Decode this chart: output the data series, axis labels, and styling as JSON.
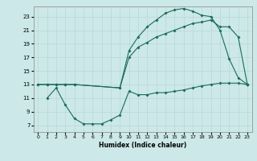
{
  "title": "",
  "xlabel": "Humidex (Indice chaleur)",
  "bg_color": "#cce8e8",
  "grid_color": "#b8d8d8",
  "line_color": "#1a6b5a",
  "xlim": [
    -0.5,
    23.5
  ],
  "ylim": [
    6,
    24.5
  ],
  "xticks": [
    0,
    1,
    2,
    3,
    4,
    5,
    6,
    7,
    8,
    9,
    10,
    11,
    12,
    13,
    14,
    15,
    16,
    17,
    18,
    19,
    20,
    21,
    22,
    23
  ],
  "yticks": [
    7,
    9,
    11,
    13,
    15,
    17,
    19,
    21,
    23
  ],
  "line1_x": [
    0,
    1,
    2,
    3,
    4,
    9,
    10,
    11,
    12,
    13,
    14,
    15,
    16,
    17,
    18,
    19,
    20,
    21,
    22,
    23
  ],
  "line1_y": [
    13,
    13,
    13,
    13,
    13,
    12.5,
    18,
    20,
    21.5,
    22.5,
    23.5,
    24,
    24.2,
    23.8,
    23.2,
    23.0,
    21.0,
    16.8,
    14.0,
    13
  ],
  "line2_x": [
    0,
    1,
    2,
    3,
    4,
    9,
    10,
    11,
    12,
    13,
    14,
    15,
    16,
    17,
    18,
    19,
    20,
    21,
    22,
    23
  ],
  "line2_y": [
    13,
    13,
    13,
    13,
    13,
    12.5,
    17,
    18.5,
    19.2,
    20.0,
    20.5,
    21.0,
    21.5,
    22.0,
    22.2,
    22.5,
    21.5,
    21.5,
    20.0,
    13
  ],
  "line3_x": [
    1,
    2,
    3,
    4,
    5,
    6,
    7,
    8,
    9,
    10,
    11,
    12,
    13,
    14,
    15,
    16,
    17,
    18,
    19,
    20,
    21,
    22,
    23
  ],
  "line3_y": [
    11,
    12.5,
    10.0,
    8.0,
    7.2,
    7.2,
    7.2,
    7.8,
    8.5,
    12.0,
    11.5,
    11.5,
    11.8,
    11.8,
    12.0,
    12.2,
    12.5,
    12.8,
    13.0,
    13.2,
    13.2,
    13.2,
    13.0
  ]
}
